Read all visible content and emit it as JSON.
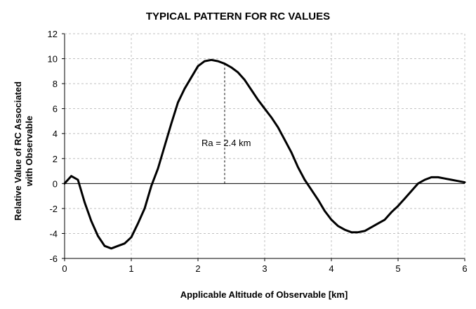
{
  "chart_data": {
    "type": "line",
    "title": "TYPICAL PATTERN FOR RC VALUES",
    "xlabel": "Applicable Altitude of Observable  [km]",
    "ylabel": [
      "Relative Value of RC Associated",
      "with Observable"
    ],
    "xlim": [
      0,
      6
    ],
    "ylim": [
      -6,
      12
    ],
    "x_ticks": [
      0,
      1,
      2,
      3,
      4,
      5,
      6
    ],
    "y_ticks": [
      -6,
      -4,
      -2,
      0,
      2,
      4,
      6,
      8,
      10,
      12
    ],
    "grid": true,
    "series": [
      {
        "x": [
          0,
          0.1,
          0.2,
          0.3,
          0.4,
          0.5,
          0.6,
          0.7,
          0.8,
          0.9,
          1.0,
          1.1,
          1.2,
          1.3,
          1.4,
          1.5,
          1.6,
          1.7,
          1.8,
          1.9,
          2.0,
          2.1,
          2.2,
          2.3,
          2.4,
          2.5,
          2.6,
          2.7,
          2.8,
          2.9,
          3.0,
          3.1,
          3.2,
          3.3,
          3.4,
          3.5,
          3.6,
          3.7,
          3.8,
          3.9,
          4.0,
          4.1,
          4.2,
          4.3,
          4.4,
          4.5,
          4.6,
          4.7,
          4.8,
          4.9,
          5.0,
          5.1,
          5.2,
          5.3,
          5.4,
          5.5,
          5.6,
          5.7,
          5.8,
          5.9,
          6.0
        ],
        "y": [
          0,
          0.6,
          0.3,
          -1.5,
          -3.0,
          -4.2,
          -5.0,
          -5.2,
          -5.0,
          -4.8,
          -4.3,
          -3.2,
          -2.0,
          -0.2,
          1.2,
          3.0,
          4.8,
          6.5,
          7.6,
          8.5,
          9.4,
          9.8,
          9.9,
          9.8,
          9.6,
          9.3,
          8.9,
          8.3,
          7.5,
          6.7,
          6.0,
          5.3,
          4.5,
          3.5,
          2.5,
          1.3,
          0.3,
          -0.5,
          -1.3,
          -2.2,
          -2.9,
          -3.4,
          -3.7,
          -3.9,
          -3.9,
          -3.8,
          -3.5,
          -3.2,
          -2.9,
          -2.3,
          -1.8,
          -1.2,
          -0.6,
          0.0,
          0.3,
          0.5,
          0.5,
          0.4,
          0.3,
          0.2,
          0.1
        ]
      }
    ],
    "annotation": {
      "text": "Ra = 2.4 km",
      "x": 2.4,
      "y_from": 0,
      "y_to": 9.6
    }
  },
  "colors": {
    "line": "#000000",
    "grid": "#c0c0c0",
    "axis": "#000000",
    "text": "#000000"
  }
}
